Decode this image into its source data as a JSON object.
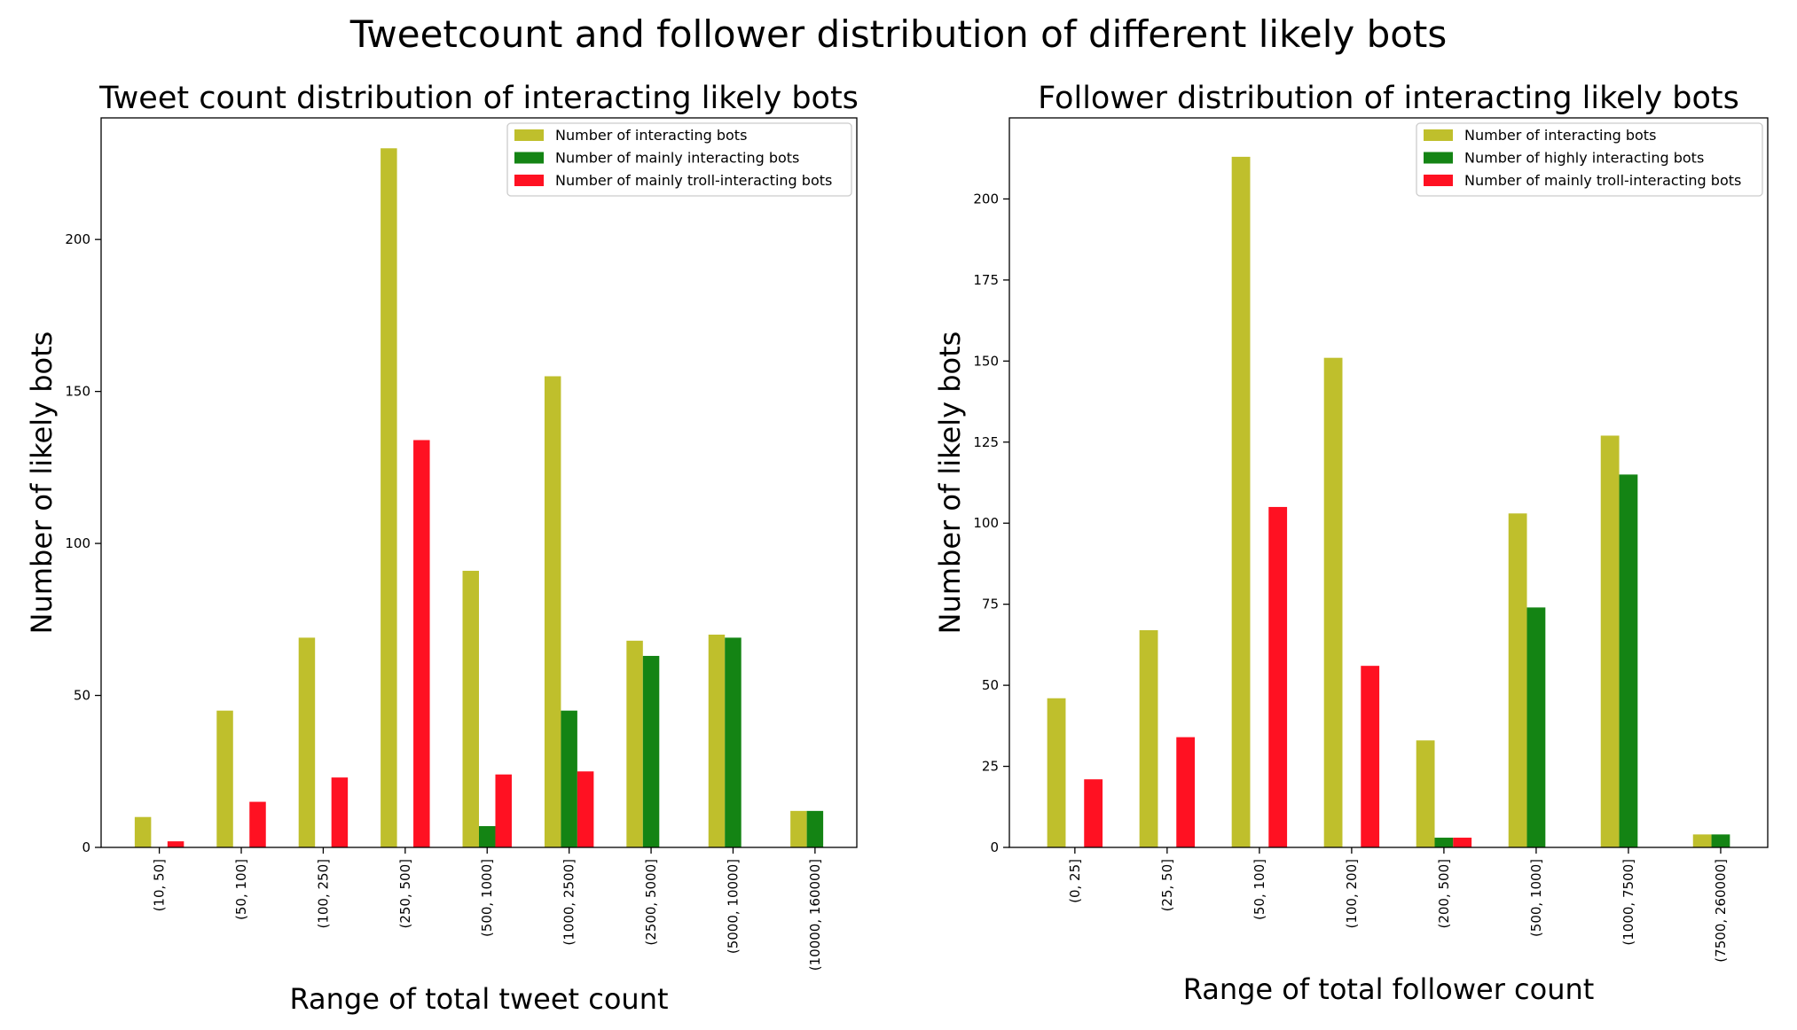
{
  "suptitle": "Tweetcount and follower distribution of different likely bots",
  "colors": {
    "interacting": "#bfbf2c",
    "mainly": "#148414",
    "troll": "#ff1122"
  },
  "chart_data": [
    {
      "type": "bar",
      "title": "Tweet count distribution of interacting likely bots",
      "xlabel": "Range of total tweet count",
      "ylabel": "Number of likely bots",
      "categories": [
        "(10, 50]",
        "(50, 100]",
        "(100, 250]",
        "(250, 500]",
        "(500, 1000]",
        "(1000, 2500]",
        "(2500, 5000]",
        "(5000, 10000]",
        "(10000, 160000]"
      ],
      "ylim": [
        0,
        240
      ],
      "yticks": [
        0,
        50,
        100,
        150,
        200
      ],
      "legend_position": "upper right",
      "grid": false,
      "series": [
        {
          "name": "Number of interacting bots",
          "color": "#bfbf2c",
          "values": [
            10,
            45,
            69,
            230,
            91,
            155,
            68,
            70,
            12
          ]
        },
        {
          "name": "Number of mainly interacting bots",
          "color": "#148414",
          "values": [
            0,
            0,
            0,
            0,
            7,
            45,
            63,
            69,
            12
          ]
        },
        {
          "name": "Number of mainly troll-interacting bots",
          "color": "#ff1122",
          "values": [
            2,
            15,
            23,
            134,
            24,
            25,
            0,
            0,
            0
          ]
        }
      ]
    },
    {
      "type": "bar",
      "title": "Follower distribution of interacting likely bots",
      "xlabel": "Range of total follower count",
      "ylabel": "Number of likely bots",
      "categories": [
        "(0, 25]",
        "(25, 50]",
        "(50, 100]",
        "(100, 200]",
        "(200, 500]",
        "(500, 1000]",
        "(1000, 7500]",
        "(7500, 260000]"
      ],
      "ylim": [
        0,
        225
      ],
      "yticks": [
        0,
        25,
        50,
        75,
        100,
        125,
        150,
        175,
        200
      ],
      "legend_position": "upper right",
      "grid": false,
      "series": [
        {
          "name": "Number of interacting bots",
          "color": "#bfbf2c",
          "values": [
            46,
            67,
            213,
            151,
            33,
            103,
            127,
            4
          ]
        },
        {
          "name": "Number of highly interacting bots",
          "color": "#148414",
          "values": [
            0,
            0,
            0,
            0,
            3,
            74,
            115,
            4
          ]
        },
        {
          "name": "Number of mainly troll-interacting bots",
          "color": "#ff1122",
          "values": [
            21,
            34,
            105,
            56,
            3,
            0,
            0,
            0
          ]
        }
      ]
    }
  ]
}
